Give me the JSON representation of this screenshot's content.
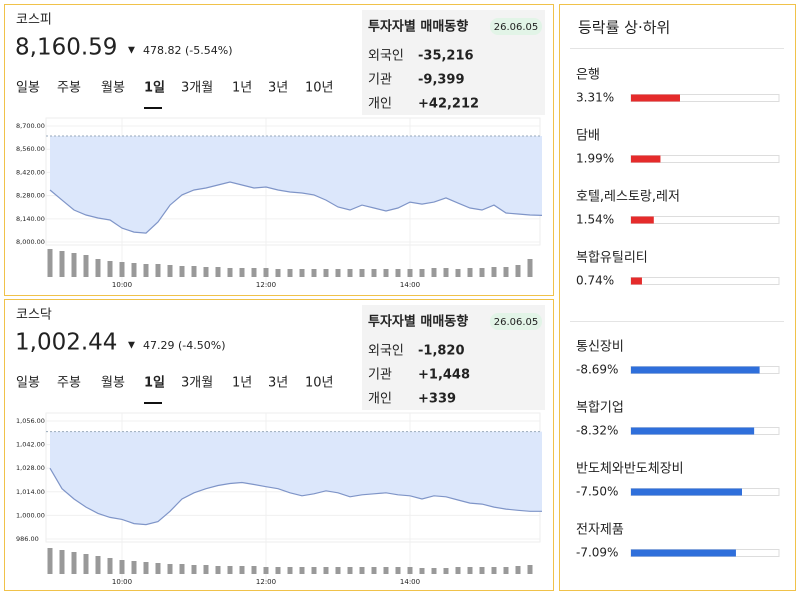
{
  "markets": [
    {
      "name": "코스피",
      "price": "8,160.59",
      "change": "478.82 (-5.54%)",
      "tabs": [
        "일봉",
        "주봉",
        "월봉",
        "1일",
        "3개월",
        "1년",
        "3년",
        "10년"
      ],
      "active_tab": 3,
      "investor": {
        "title": "투자자별 매매동향",
        "date": "26.06.05",
        "rows": [
          {
            "label": "외국인",
            "value": "-35,216"
          },
          {
            "label": "기관",
            "value": "-9,399"
          },
          {
            "label": "개인",
            "value": "+42,212"
          }
        ]
      },
      "chart": {
        "type": "line",
        "color": "#7f95c8",
        "fill": "#dce7fb",
        "x": [
          "09:00",
          "09:10",
          "09:20",
          "09:30",
          "09:40",
          "09:50",
          "10:00",
          "10:10",
          "10:20",
          "10:30",
          "10:40",
          "10:50",
          "11:00",
          "11:10",
          "11:20",
          "11:30",
          "11:40",
          "11:50",
          "12:00",
          "12:10",
          "12:20",
          "12:30",
          "12:40",
          "12:50",
          "13:00",
          "13:10",
          "13:20",
          "13:30",
          "13:40",
          "13:50",
          "14:00",
          "14:10",
          "14:20",
          "14:30",
          "14:40",
          "14:50",
          "15:00",
          "15:10",
          "15:20",
          "15:30",
          "15:40",
          "15:50"
        ],
        "values": [
          8314,
          8253,
          8193,
          8163,
          8145,
          8133,
          8084,
          8060,
          8054,
          8121,
          8223,
          8284,
          8314,
          8326,
          8344,
          8362,
          8344,
          8326,
          8332,
          8314,
          8302,
          8296,
          8284,
          8253,
          8211,
          8193,
          8223,
          8205,
          8187,
          8205,
          8241,
          8229,
          8241,
          8266,
          8235,
          8205,
          8193,
          8223,
          8175,
          8169,
          8163,
          8160.59
        ],
        "prev_close": 8639.41,
        "volume": [
          28,
          26,
          24,
          22,
          18,
          16,
          15,
          14,
          13,
          13,
          12,
          11,
          11,
          10,
          10,
          9,
          9,
          9,
          9,
          8,
          8,
          8,
          8,
          8,
          8,
          8,
          8,
          8,
          8,
          8,
          8,
          8,
          9,
          9,
          8,
          9,
          9,
          10,
          10,
          12,
          18,
          0
        ],
        "ylim": [
          7982,
          8700
        ],
        "yticks": [
          {
            "value": 8700,
            "label": "8,700.00"
          },
          {
            "value": 8560,
            "label": "8,560.00"
          },
          {
            "value": 8420,
            "label": "8,420.00"
          },
          {
            "value": 8280,
            "label": "8,280.00"
          },
          {
            "value": 8140,
            "label": "8,140.00"
          },
          {
            "value": 8000,
            "label": "8,000.00"
          }
        ],
        "xlim": [
          "09:00",
          "15:50"
        ],
        "xticks": [
          "10:00",
          "12:00",
          "14:00"
        ]
      }
    },
    {
      "name": "코스닥",
      "price": "1,002.44",
      "change": "47.29 (-4.50%)",
      "tabs": [
        "일봉",
        "주봉",
        "월봉",
        "1일",
        "3개월",
        "1년",
        "3년",
        "10년"
      ],
      "active_tab": 3,
      "investor": {
        "title": "투자자별 매매동향",
        "date": "26.06.05",
        "rows": [
          {
            "label": "외국인",
            "value": "-1,820"
          },
          {
            "label": "기관",
            "value": "+1,448"
          },
          {
            "label": "개인",
            "value": "+339"
          }
        ]
      },
      "chart": {
        "type": "line",
        "color": "#7f95c8",
        "fill": "#dce7fb",
        "x": [
          "09:00",
          "09:10",
          "09:20",
          "09:30",
          "09:40",
          "09:50",
          "10:00",
          "10:10",
          "10:20",
          "10:30",
          "10:40",
          "10:50",
          "11:00",
          "11:10",
          "11:20",
          "11:30",
          "11:40",
          "11:50",
          "12:00",
          "12:10",
          "12:20",
          "12:30",
          "12:40",
          "12:50",
          "13:00",
          "13:10",
          "13:20",
          "13:30",
          "13:40",
          "13:50",
          "14:00",
          "14:10",
          "14:20",
          "14:30",
          "14:40",
          "14:50",
          "15:00",
          "15:10",
          "15:20",
          "15:30",
          "15:40",
          "15:50"
        ],
        "values": [
          1028.0,
          1015.8,
          1009.7,
          1004.9,
          1001.2,
          998.8,
          997.6,
          995.1,
          994.5,
          996.3,
          1002.4,
          1009.7,
          1013.4,
          1015.8,
          1017.7,
          1018.9,
          1019.5,
          1018.3,
          1017.0,
          1015.8,
          1013.4,
          1011.6,
          1012.8,
          1014.6,
          1013.4,
          1011.0,
          1012.2,
          1012.8,
          1013.4,
          1012.2,
          1011.6,
          1009.7,
          1011.6,
          1011.0,
          1009.1,
          1007.3,
          1006.7,
          1004.9,
          1003.7,
          1003.0,
          1002.4,
          1002.44
        ],
        "prev_close": 1049.73,
        "volume": [
          26,
          24,
          22,
          20,
          18,
          16,
          14,
          13,
          12,
          11,
          10,
          10,
          9,
          9,
          8,
          8,
          8,
          8,
          7,
          7,
          7,
          7,
          7,
          7,
          7,
          7,
          7,
          7,
          7,
          7,
          7,
          6,
          6,
          6,
          7,
          7,
          7,
          7,
          7,
          8,
          9,
          0
        ],
        "ylim": [
          984.2,
          1056
        ],
        "yticks": [
          {
            "value": 1056,
            "label": "1,056.00"
          },
          {
            "value": 1042,
            "label": "1,042.00"
          },
          {
            "value": 1028,
            "label": "1,028.00"
          },
          {
            "value": 1014,
            "label": "1,014.00"
          },
          {
            "value": 1000,
            "label": "1,000.00"
          },
          {
            "value": 986,
            "label": "986.00"
          }
        ],
        "xlim": [
          "09:00",
          "15:50"
        ],
        "xticks": [
          "10:00",
          "12:00",
          "14:00"
        ]
      }
    }
  ],
  "rankings": {
    "title": "등락률 상·하위",
    "groups": [
      [
        {
          "name": "은행",
          "value": 3.31,
          "label": "3.31%"
        },
        {
          "name": "담배",
          "value": 1.99,
          "label": "1.99%"
        },
        {
          "name": "호텔,레스토랑,레저",
          "value": 1.54,
          "label": "1.54%"
        },
        {
          "name": "복합유틸리티",
          "value": 0.74,
          "label": "0.74%"
        }
      ],
      [
        {
          "name": "통신장비",
          "value": -8.69,
          "label": "-8.69%"
        },
        {
          "name": "복합기업",
          "value": -8.32,
          "label": "-8.32%"
        },
        {
          "name": "반도체와반도체장비",
          "value": -7.5,
          "label": "-7.50%"
        },
        {
          "name": "전자제품",
          "value": -7.09,
          "label": "-7.09%"
        }
      ]
    ]
  }
}
